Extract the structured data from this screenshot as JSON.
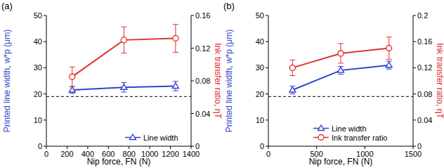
{
  "chart_data": [
    {
      "type": "line",
      "panel_label": "(a)",
      "x_label": "Nip force, FN (N)",
      "y_label": "Printed line width, w*p (μm)",
      "y2_label": "Ink transfer ratio, ηT",
      "x": [
        250,
        750,
        1250
      ],
      "xlim": [
        0,
        1400
      ],
      "xticks": [
        0,
        200,
        400,
        600,
        800,
        1000,
        1200,
        1400
      ],
      "ylim": [
        0,
        50
      ],
      "yticks": [
        0,
        10,
        20,
        30,
        40,
        50
      ],
      "y2lim": [
        0,
        0.16
      ],
      "y2ticks": [
        0,
        0.04,
        0.08,
        0.12,
        0.16
      ],
      "legend": "lower right",
      "reference_line": {
        "value": 19,
        "line_style": "dashed",
        "color": "#000000"
      },
      "series": [
        {
          "name": "Line width",
          "color": "#3344cc",
          "marker": "triangle",
          "axis": "y",
          "values": [
            21.5,
            22.5,
            23
          ],
          "errors": [
            1.3,
            1.8,
            1.8
          ]
        },
        {
          "color": "#e03030",
          "marker": "circle",
          "axis": "y2",
          "values": [
            0.085,
            0.13,
            0.132
          ],
          "errors": [
            0.012,
            0.016,
            0.017
          ]
        }
      ]
    },
    {
      "type": "line",
      "panel_label": "(b)",
      "x_label": "Nip force, FN (N)",
      "y_label": "Printed line width, w*p (μm)",
      "y2_label": "Ink transfer ratio, ηT",
      "x": [
        250,
        750,
        1250
      ],
      "xlim": [
        0,
        1500
      ],
      "xticks": [
        0,
        500,
        1000,
        1500
      ],
      "ylim": [
        0,
        50
      ],
      "yticks": [
        0,
        10,
        20,
        30,
        40,
        50
      ],
      "y2lim": [
        0,
        0.2
      ],
      "y2ticks": [
        0,
        0.04,
        0.08,
        0.12,
        0.16,
        0.2
      ],
      "legend": "lower right",
      "reference_line": {
        "value": 19,
        "line_style": "dashed",
        "color": "#000000"
      },
      "series": [
        {
          "name": "Line width",
          "color": "#3344cc",
          "marker": "triangle",
          "axis": "y",
          "values": [
            21.5,
            29,
            31
          ],
          "errors": [
            1.5,
            1.5,
            1.5
          ]
        },
        {
          "name": "Ink transfer ratio",
          "color": "#e03030",
          "marker": "circle",
          "axis": "y2",
          "values": [
            0.12,
            0.142,
            0.15
          ],
          "errors": [
            0.012,
            0.015,
            0.017
          ]
        }
      ]
    }
  ]
}
